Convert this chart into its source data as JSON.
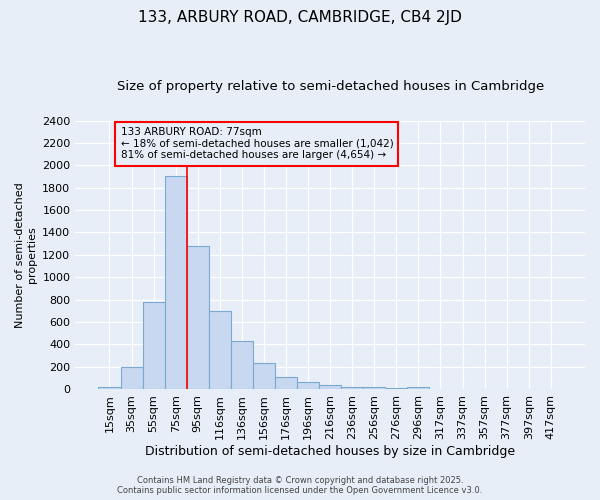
{
  "title1": "133, ARBURY ROAD, CAMBRIDGE, CB4 2JD",
  "title2": "Size of property relative to semi-detached houses in Cambridge",
  "xlabel": "Distribution of semi-detached houses by size in Cambridge",
  "ylabel": "Number of semi-detached\nproperties",
  "categories": [
    "15sqm",
    "35sqm",
    "55sqm",
    "75sqm",
    "95sqm",
    "116sqm",
    "136sqm",
    "156sqm",
    "176sqm",
    "196sqm",
    "216sqm",
    "236sqm",
    "256sqm",
    "276sqm",
    "296sqm",
    "317sqm",
    "337sqm",
    "357sqm",
    "377sqm",
    "397sqm",
    "417sqm"
  ],
  "values": [
    20,
    200,
    775,
    1900,
    1280,
    700,
    430,
    230,
    110,
    65,
    35,
    22,
    15,
    10,
    20,
    5,
    0,
    0,
    0,
    0,
    0
  ],
  "bar_color": "#c8d8f0",
  "bar_edge_color": "#7aaad0",
  "annotation_text": "133 ARBURY ROAD: 77sqm\n← 18% of semi-detached houses are smaller (1,042)\n81% of semi-detached houses are larger (4,654) →",
  "footer1": "Contains HM Land Registry data © Crown copyright and database right 2025.",
  "footer2": "Contains public sector information licensed under the Open Government Licence v3.0.",
  "bg_color": "#e8eef8",
  "ylim": [
    0,
    2400
  ],
  "yticks": [
    0,
    200,
    400,
    600,
    800,
    1000,
    1200,
    1400,
    1600,
    1800,
    2000,
    2200,
    2400
  ],
  "title1_fontsize": 11,
  "title2_fontsize": 9.5,
  "xlabel_fontsize": 9,
  "ylabel_fontsize": 8,
  "tick_fontsize": 8,
  "annotation_fontsize": 7.5,
  "footer_fontsize": 6,
  "red_line_index": 3
}
